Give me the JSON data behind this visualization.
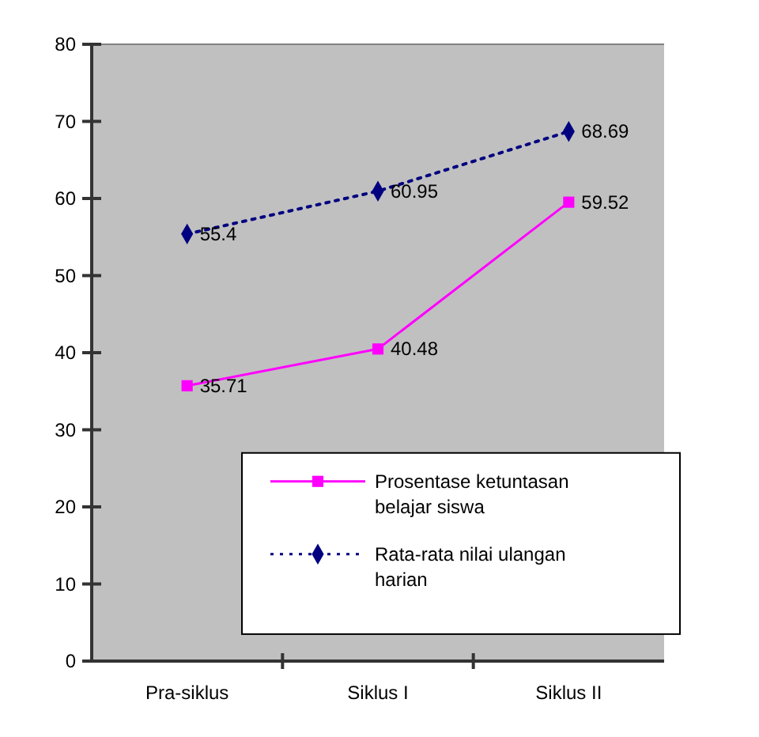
{
  "chart_data": {
    "type": "line",
    "categories": [
      "Pra-siklus",
      "Siklus I",
      "Siklus II"
    ],
    "ylim": [
      0,
      80
    ],
    "yticks": [
      0,
      10,
      20,
      30,
      40,
      50,
      60,
      70,
      80
    ],
    "grid": false,
    "legend": "bottom right",
    "data_labels": true,
    "series": [
      {
        "name": "Prosentase ketuntasan belajar siswa",
        "color": "#ff00ff",
        "marker": "square",
        "line_style": "solid",
        "values": [
          35.71,
          40.48,
          59.52
        ]
      },
      {
        "name": "Rata-rata nilai ulangan harian",
        "color": "#000080",
        "marker": "diamond",
        "line_style": "dotted",
        "values": [
          55.4,
          60.95,
          68.69
        ]
      }
    ]
  }
}
